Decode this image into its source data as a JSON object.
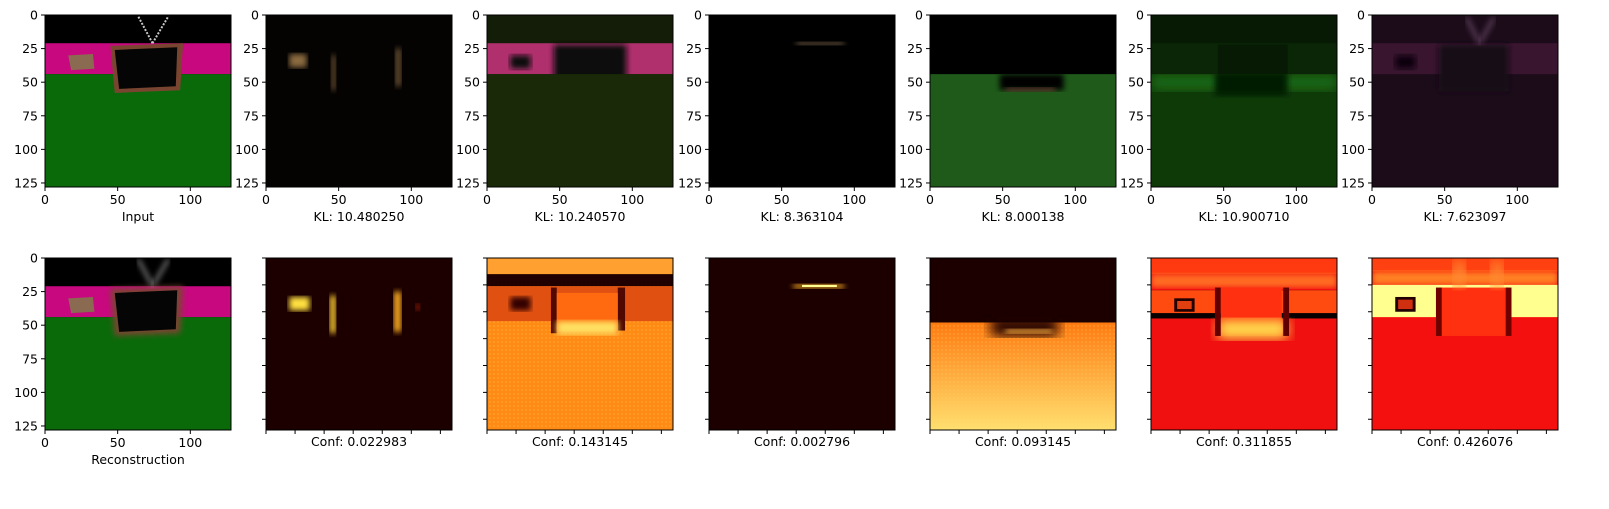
{
  "chart_data": {
    "type": "heatmap",
    "grid": {
      "rows": 2,
      "cols": 7
    },
    "axes": {
      "xlim": [
        0,
        128
      ],
      "ylim": [
        128,
        0
      ],
      "xticks": [
        0,
        50,
        100
      ],
      "yticks": [
        0,
        25,
        50,
        75,
        100,
        125
      ],
      "conf_ticks": [
        0,
        20,
        40,
        60,
        80,
        100,
        120
      ]
    },
    "top_row": [
      {
        "label": "Input",
        "kind": "scene"
      },
      {
        "label": "KL: 10.480250",
        "kind": "component",
        "tint": "#8a6a40",
        "background": "#050302"
      },
      {
        "label": "KL: 10.240570",
        "kind": "component",
        "tint": "#b0306e",
        "background": "#141d07"
      },
      {
        "label": "KL: 8.363104",
        "kind": "component",
        "tint": "#7a6248",
        "background": "#000000"
      },
      {
        "label": "KL: 8.000138",
        "kind": "component",
        "tint": "#1f5a1a",
        "background": "#000000"
      },
      {
        "label": "KL: 10.900710",
        "kind": "component",
        "tint": "#1e6a12",
        "background": "#061a04"
      },
      {
        "label": "KL: 7.623097",
        "kind": "component",
        "tint": "#3a1530",
        "background": "#1c0c1a"
      }
    ],
    "bottom_row": [
      {
        "label": "Reconstruction",
        "kind": "scene"
      },
      {
        "label": "Conf: 0.022983",
        "kind": "confidence",
        "value": 0.022983
      },
      {
        "label": "Conf: 0.143145",
        "kind": "confidence",
        "value": 0.143145
      },
      {
        "label": "Conf: 0.002796",
        "kind": "confidence",
        "value": 0.002796
      },
      {
        "label": "Conf: 0.093145",
        "kind": "confidence",
        "value": 0.093145
      },
      {
        "label": "Conf: 0.311855",
        "kind": "confidence",
        "value": 0.311855
      },
      {
        "label": "Conf: 0.426076",
        "kind": "confidence",
        "value": 0.426076
      }
    ],
    "colors": {
      "wall": "#c8087e",
      "floor": "#0a6a0a",
      "sky": "#000000",
      "tv_frame": "#7a4530",
      "tv_screen": "#050505",
      "box": "#8a6a50",
      "heat_low": "#1a0000",
      "heat_mid": "#ff4400",
      "heat_high": "#ffff80"
    }
  }
}
